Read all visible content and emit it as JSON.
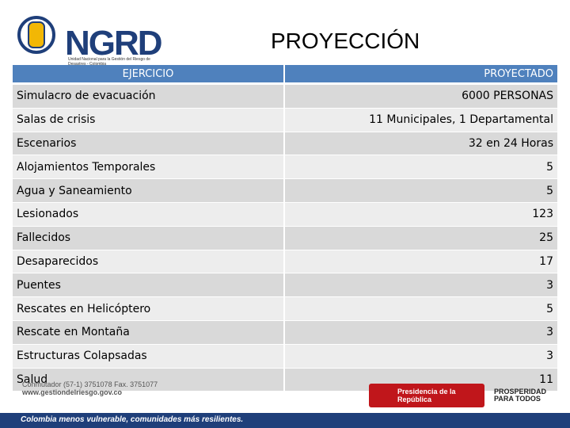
{
  "header": {
    "logo": "NGRD",
    "logo_subtitle": "Unidad Nacional para la Gestión del Riesgo de Desastres - Colombia",
    "title": "PROYECCIÓN"
  },
  "table": {
    "columns": [
      "EJERCICIO",
      "PROYECTADO"
    ],
    "rows": [
      [
        "Simulacro de evacuación",
        "6000 PERSONAS"
      ],
      [
        "Salas de crisis",
        "11 Municipales, 1 Departamental"
      ],
      [
        "Escenarios",
        "32 en  24 Horas"
      ],
      [
        "Alojamientos Temporales",
        5
      ],
      [
        "Agua y Saneamiento",
        5
      ],
      [
        "Lesionados",
        123
      ],
      [
        "Fallecidos",
        25
      ],
      [
        "Desaparecidos",
        17
      ],
      [
        "Puentes",
        3
      ],
      [
        "Rescates en Helicóptero",
        5
      ],
      [
        "Rescate en Montaña",
        3
      ],
      [
        "Estructuras Colapsadas",
        3
      ],
      [
        "Salud",
        11
      ]
    ]
  },
  "footer": {
    "contact": [
      "Conmutador (57-1) 3751078 Fax. 3751077",
      "www.gestiondelriesgo.gov.co"
    ],
    "slogan": "Colombia menos vulnerable, comunidades más resilientes.",
    "presidency": "Presidencia de la República",
    "prosperity": [
      "PROSPERIDAD",
      "PARA TODOS"
    ]
  }
}
